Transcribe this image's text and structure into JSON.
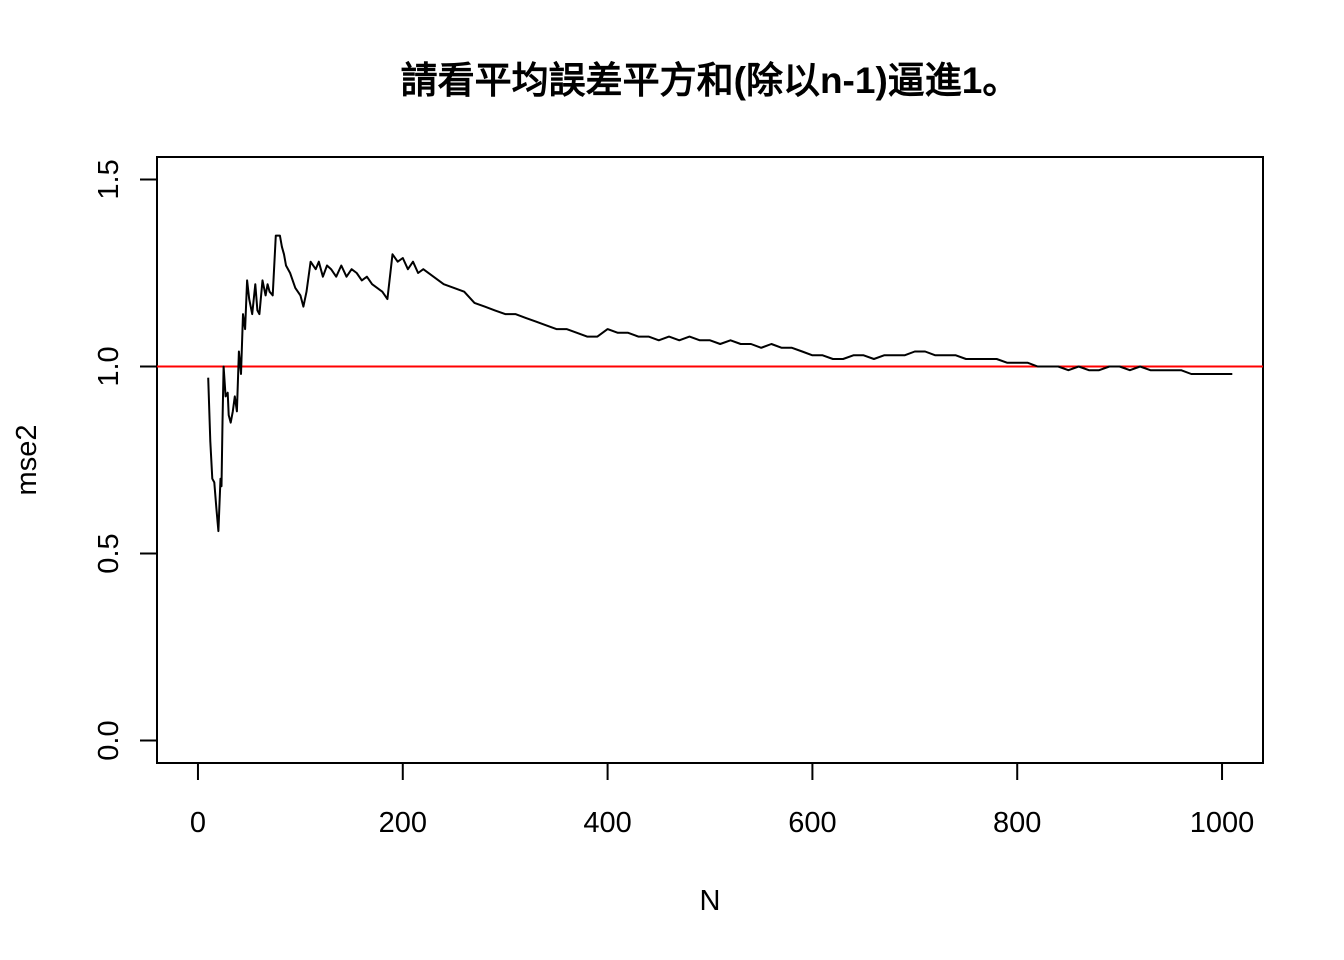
{
  "chart_data": {
    "type": "line",
    "title": "請看平均誤差平方和(除以n-1)逼進1。",
    "xlabel": "N",
    "ylabel": "mse2",
    "xlim": [
      -40,
      1040
    ],
    "ylim": [
      -0.06,
      1.56
    ],
    "x_ticks": [
      0,
      200,
      400,
      600,
      800,
      1000
    ],
    "x_tick_labels": [
      "0",
      "200",
      "400",
      "600",
      "800",
      "1000"
    ],
    "y_ticks": [
      0.0,
      0.5,
      1.0,
      1.5
    ],
    "y_tick_labels": [
      "0.0",
      "0.5",
      "1.0",
      "1.5"
    ],
    "grid": false,
    "reference_line": {
      "y": 1.0,
      "color": "#ff0000"
    },
    "series": [
      {
        "color": "#000000",
        "x": [
          10,
          12,
          14,
          16,
          18,
          20,
          22,
          23,
          24,
          25,
          27,
          29,
          30,
          32,
          34,
          36,
          38,
          40,
          42,
          44,
          46,
          48,
          50,
          53,
          56,
          58,
          60,
          63,
          66,
          68,
          70,
          73,
          76,
          80,
          82,
          84,
          86,
          90,
          95,
          100,
          103,
          106,
          110,
          115,
          118,
          122,
          126,
          130,
          135,
          140,
          145,
          150,
          155,
          160,
          165,
          170,
          175,
          180,
          185,
          190,
          195,
          200,
          205,
          210,
          215,
          220,
          230,
          240,
          250,
          260,
          270,
          280,
          290,
          300,
          310,
          320,
          330,
          340,
          350,
          360,
          370,
          380,
          390,
          400,
          410,
          420,
          430,
          440,
          450,
          460,
          470,
          480,
          490,
          500,
          510,
          520,
          530,
          540,
          550,
          560,
          570,
          580,
          590,
          600,
          610,
          620,
          630,
          640,
          650,
          660,
          670,
          680,
          690,
          700,
          710,
          720,
          730,
          740,
          750,
          760,
          770,
          780,
          790,
          800,
          810,
          820,
          830,
          840,
          850,
          860,
          870,
          880,
          890,
          900,
          910,
          920,
          930,
          940,
          950,
          960,
          970,
          980,
          990,
          1000,
          1010
        ],
        "values": [
          0.97,
          0.8,
          0.7,
          0.69,
          0.62,
          0.56,
          0.7,
          0.68,
          0.85,
          1.0,
          0.92,
          0.93,
          0.87,
          0.85,
          0.88,
          0.92,
          0.88,
          1.04,
          0.98,
          1.14,
          1.1,
          1.23,
          1.18,
          1.14,
          1.22,
          1.15,
          1.14,
          1.23,
          1.19,
          1.22,
          1.2,
          1.19,
          1.35,
          1.35,
          1.32,
          1.3,
          1.27,
          1.25,
          1.21,
          1.19,
          1.16,
          1.2,
          1.28,
          1.26,
          1.28,
          1.24,
          1.27,
          1.26,
          1.24,
          1.27,
          1.24,
          1.26,
          1.25,
          1.23,
          1.24,
          1.22,
          1.21,
          1.2,
          1.18,
          1.3,
          1.28,
          1.29,
          1.26,
          1.28,
          1.25,
          1.26,
          1.24,
          1.22,
          1.21,
          1.2,
          1.17,
          1.16,
          1.15,
          1.14,
          1.14,
          1.13,
          1.12,
          1.11,
          1.1,
          1.1,
          1.09,
          1.08,
          1.08,
          1.1,
          1.09,
          1.09,
          1.08,
          1.08,
          1.07,
          1.08,
          1.07,
          1.08,
          1.07,
          1.07,
          1.06,
          1.07,
          1.06,
          1.06,
          1.05,
          1.06,
          1.05,
          1.05,
          1.04,
          1.03,
          1.03,
          1.02,
          1.02,
          1.03,
          1.03,
          1.02,
          1.03,
          1.03,
          1.03,
          1.04,
          1.04,
          1.03,
          1.03,
          1.03,
          1.02,
          1.02,
          1.02,
          1.02,
          1.01,
          1.01,
          1.01,
          1.0,
          1.0,
          1.0,
          0.99,
          1.0,
          0.99,
          0.99,
          1.0,
          1.0,
          0.99,
          1.0,
          0.99,
          0.99,
          0.99,
          0.99,
          0.98,
          0.98,
          0.98,
          0.98,
          0.98
        ]
      }
    ]
  }
}
